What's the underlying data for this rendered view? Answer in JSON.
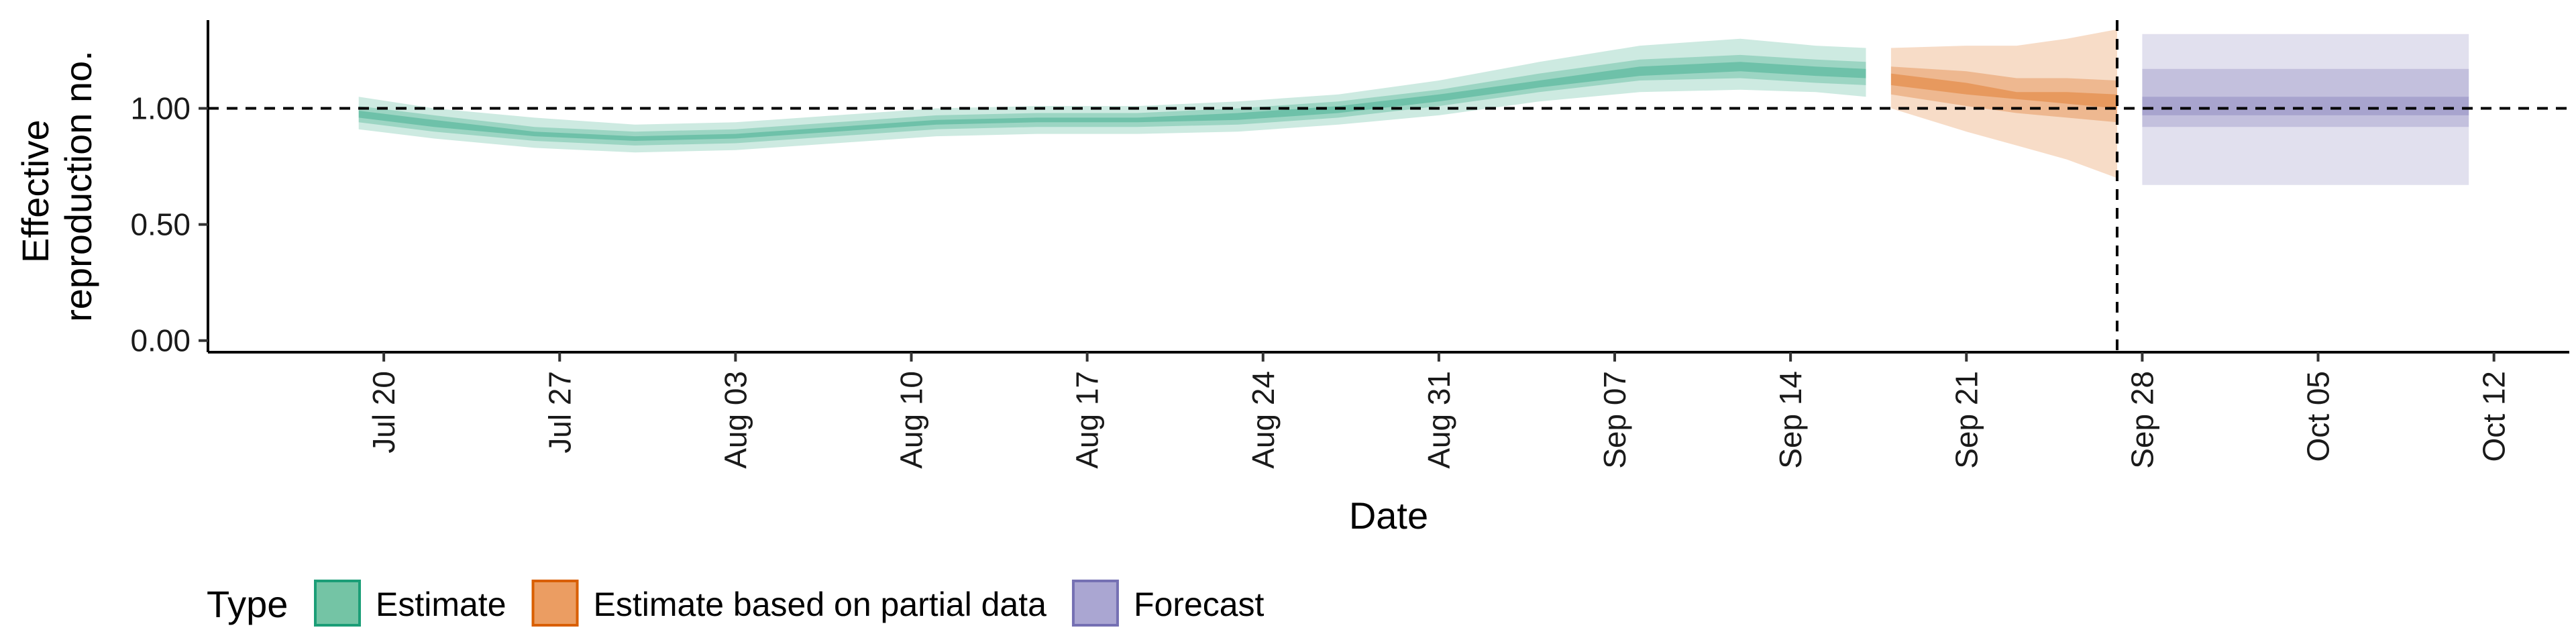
{
  "chart_data": {
    "type": "area",
    "xlabel": "Date",
    "ylabel_lines": [
      "Effective",
      "reproduction no."
    ],
    "x_tick_labels": [
      "Jul 20",
      "Jul 27",
      "Aug 03",
      "Aug 10",
      "Aug 17",
      "Aug 24",
      "Aug 31",
      "Sep 07",
      "Sep 14",
      "Sep 21",
      "Sep 28",
      "Oct 05",
      "Oct 12"
    ],
    "x_tick_dates": [
      "2020-07-20",
      "2020-07-27",
      "2020-08-03",
      "2020-08-10",
      "2020-08-17",
      "2020-08-24",
      "2020-08-31",
      "2020-09-07",
      "2020-09-14",
      "2020-09-21",
      "2020-09-28",
      "2020-10-05",
      "2020-10-12"
    ],
    "xlim": [
      "2020-07-13",
      "2020-10-15"
    ],
    "y_ticks": [
      0.0,
      0.5,
      1.0
    ],
    "y_tick_labels": [
      "0.00",
      "0.50",
      "1.00"
    ],
    "ylim": [
      -0.05,
      1.38
    ],
    "reference_line_y": 1.0,
    "reference_line_date": "2020-09-27",
    "grid": false,
    "legend": {
      "title": "Type",
      "position": "bottom",
      "entries": [
        {
          "label": "Estimate",
          "fill": "#74c4a5",
          "stroke": "#1b9e77"
        },
        {
          "label": "Estimate based on partial data",
          "fill": "#eb9d62",
          "stroke": "#d95f02"
        },
        {
          "label": "Forecast",
          "fill": "#aaa6d2",
          "stroke": "#7570b3"
        }
      ]
    },
    "series": [
      {
        "name": "Estimate",
        "color": "#1b9e77",
        "points": [
          {
            "date": "2020-07-19",
            "lo90": 0.91,
            "lo50": 0.94,
            "lo20": 0.96,
            "hi20": 0.99,
            "hi50": 1.01,
            "hi90": 1.05
          },
          {
            "date": "2020-07-22",
            "lo90": 0.87,
            "lo50": 0.9,
            "lo20": 0.92,
            "hi20": 0.95,
            "hi50": 0.97,
            "hi90": 1.0
          },
          {
            "date": "2020-07-26",
            "lo90": 0.83,
            "lo50": 0.86,
            "lo20": 0.88,
            "hi20": 0.9,
            "hi50": 0.92,
            "hi90": 0.96
          },
          {
            "date": "2020-07-30",
            "lo90": 0.81,
            "lo50": 0.84,
            "lo20": 0.86,
            "hi20": 0.88,
            "hi50": 0.9,
            "hi90": 0.93
          },
          {
            "date": "2020-08-03",
            "lo90": 0.82,
            "lo50": 0.85,
            "lo20": 0.87,
            "hi20": 0.89,
            "hi50": 0.91,
            "hi90": 0.94
          },
          {
            "date": "2020-08-07",
            "lo90": 0.85,
            "lo50": 0.88,
            "lo20": 0.9,
            "hi20": 0.92,
            "hi50": 0.94,
            "hi90": 0.97
          },
          {
            "date": "2020-08-11",
            "lo90": 0.88,
            "lo50": 0.91,
            "lo20": 0.93,
            "hi20": 0.95,
            "hi50": 0.97,
            "hi90": 1.0
          },
          {
            "date": "2020-08-15",
            "lo90": 0.89,
            "lo50": 0.92,
            "lo20": 0.94,
            "hi20": 0.96,
            "hi50": 0.98,
            "hi90": 1.01
          },
          {
            "date": "2020-08-19",
            "lo90": 0.89,
            "lo50": 0.92,
            "lo20": 0.94,
            "hi20": 0.96,
            "hi50": 0.98,
            "hi90": 1.01
          },
          {
            "date": "2020-08-23",
            "lo90": 0.9,
            "lo50": 0.93,
            "lo20": 0.95,
            "hi20": 0.98,
            "hi50": 1.0,
            "hi90": 1.03
          },
          {
            "date": "2020-08-27",
            "lo90": 0.93,
            "lo50": 0.96,
            "lo20": 0.98,
            "hi20": 1.01,
            "hi50": 1.03,
            "hi90": 1.06
          },
          {
            "date": "2020-08-31",
            "lo90": 0.97,
            "lo50": 1.01,
            "lo20": 1.03,
            "hi20": 1.06,
            "hi50": 1.08,
            "hi90": 1.12
          },
          {
            "date": "2020-09-04",
            "lo90": 1.03,
            "lo50": 1.07,
            "lo20": 1.09,
            "hi20": 1.12,
            "hi50": 1.15,
            "hi90": 1.2
          },
          {
            "date": "2020-09-08",
            "lo90": 1.07,
            "lo50": 1.12,
            "lo20": 1.14,
            "hi20": 1.18,
            "hi50": 1.21,
            "hi90": 1.27
          },
          {
            "date": "2020-09-12",
            "lo90": 1.08,
            "lo50": 1.13,
            "lo20": 1.16,
            "hi20": 1.2,
            "hi50": 1.23,
            "hi90": 1.3
          },
          {
            "date": "2020-09-15",
            "lo90": 1.07,
            "lo50": 1.11,
            "lo20": 1.14,
            "hi20": 1.18,
            "hi50": 1.21,
            "hi90": 1.27
          },
          {
            "date": "2020-09-17",
            "lo90": 1.05,
            "lo50": 1.1,
            "lo20": 1.13,
            "hi20": 1.17,
            "hi50": 1.2,
            "hi90": 1.26
          }
        ]
      },
      {
        "name": "Estimate based on partial data",
        "color": "#d95f02",
        "points": [
          {
            "date": "2020-09-18",
            "lo90": 1.0,
            "lo50": 1.06,
            "lo20": 1.1,
            "hi20": 1.15,
            "hi50": 1.18,
            "hi90": 1.26
          },
          {
            "date": "2020-09-21",
            "lo90": 0.9,
            "lo50": 1.01,
            "lo20": 1.06,
            "hi20": 1.11,
            "hi50": 1.16,
            "hi90": 1.27
          },
          {
            "date": "2020-09-23",
            "lo90": 0.84,
            "lo50": 0.98,
            "lo20": 1.04,
            "hi20": 1.07,
            "hi50": 1.13,
            "hi90": 1.27
          },
          {
            "date": "2020-09-25",
            "lo90": 0.78,
            "lo50": 0.96,
            "lo20": 1.02,
            "hi20": 1.07,
            "hi50": 1.13,
            "hi90": 1.3
          },
          {
            "date": "2020-09-27",
            "lo90": 0.7,
            "lo50": 0.94,
            "lo20": 1.0,
            "hi20": 1.06,
            "hi50": 1.12,
            "hi90": 1.34
          }
        ]
      },
      {
        "name": "Forecast",
        "color": "#7570b3",
        "points": [
          {
            "date": "2020-09-28",
            "lo90": 0.67,
            "lo50": 0.92,
            "lo20": 0.97,
            "hi20": 1.05,
            "hi50": 1.17,
            "hi90": 1.32
          },
          {
            "date": "2020-10-11",
            "lo90": 0.67,
            "lo50": 0.92,
            "lo20": 0.97,
            "hi20": 1.05,
            "hi50": 1.17,
            "hi90": 1.32
          }
        ]
      }
    ]
  }
}
